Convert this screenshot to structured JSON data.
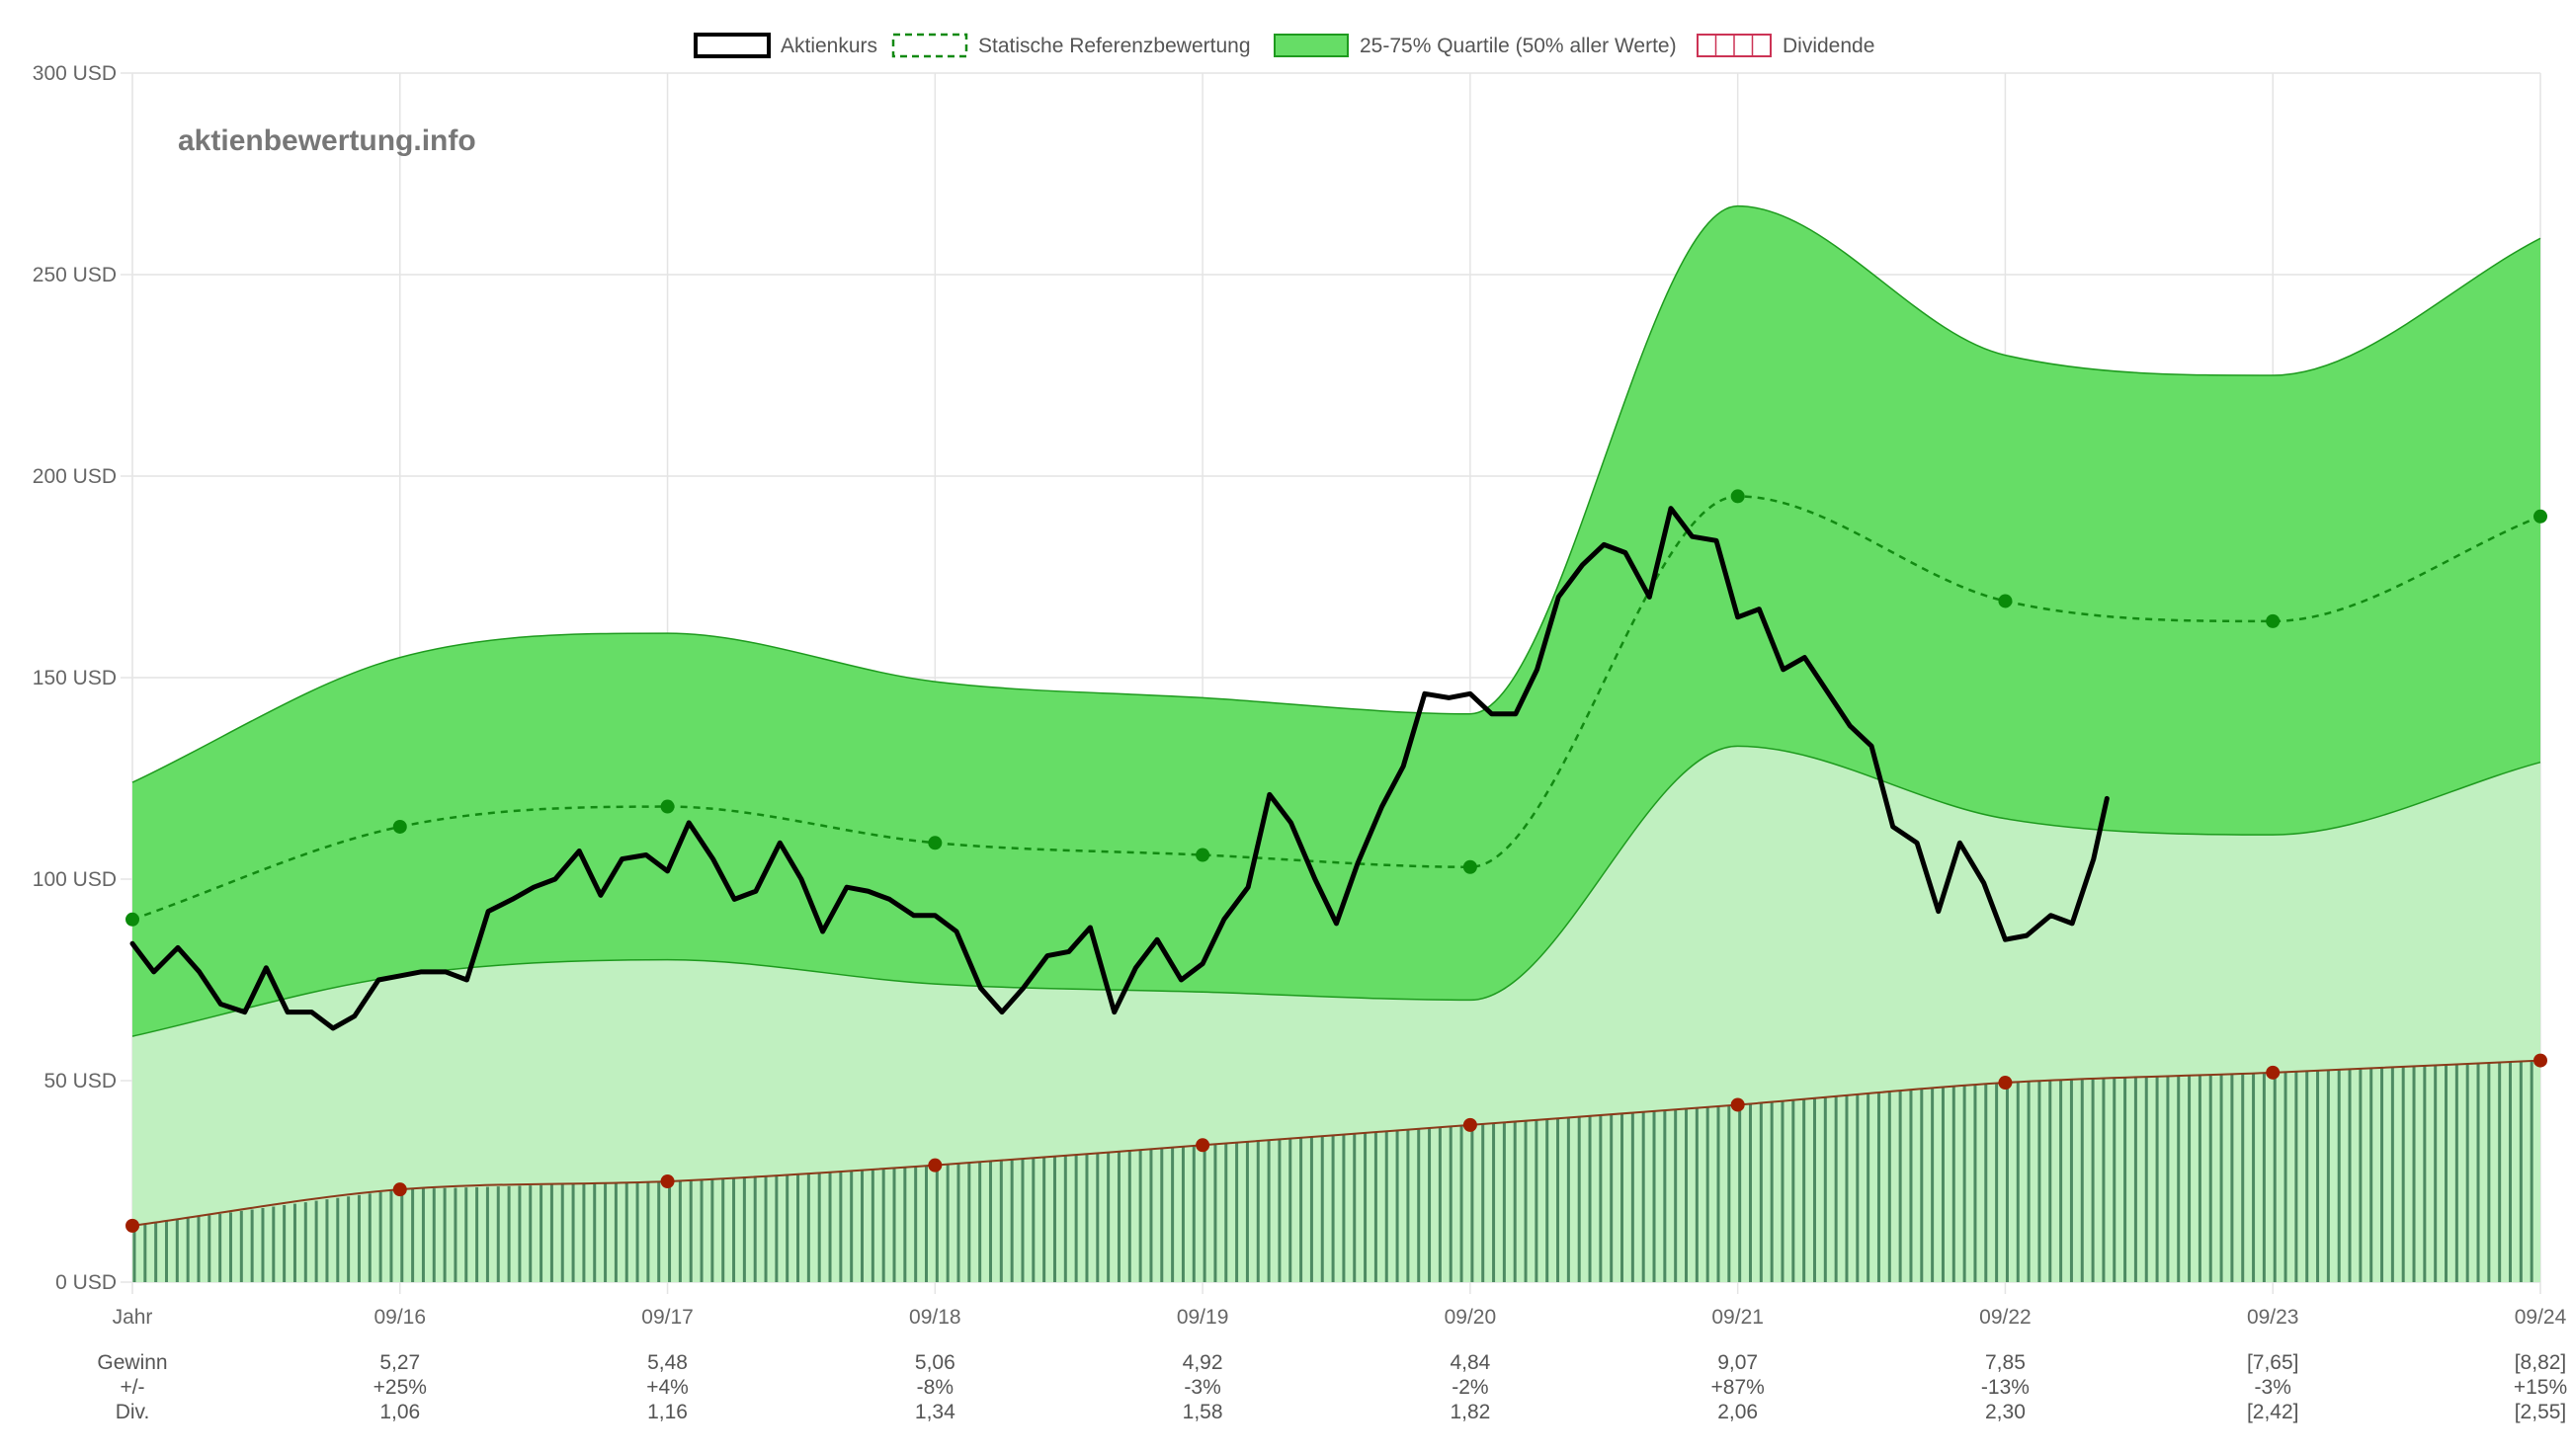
{
  "watermark": "aktienbewertung.info",
  "legend": {
    "items": [
      {
        "label": "Aktienkurs",
        "key": "price"
      },
      {
        "label": "Statische Referenzbewertung",
        "key": "reference"
      },
      {
        "label": "25-75% Quartile (50% aller Werte)",
        "key": "quartile"
      },
      {
        "label": "Dividende",
        "key": "dividend"
      }
    ]
  },
  "colors": {
    "price": "#000000",
    "reference": "#128a12",
    "reference_point": "#0a8a0a",
    "quartile_fill": "#66dd66",
    "quartile_stroke": "#1e9a1e",
    "lower_fill": "#c0f0c0",
    "dividend_bar": "#4d8a62",
    "dividend_line": "#8b3a1a",
    "dividend_point": "#a01e00",
    "dividend_legend_border": "#cc3355",
    "grid": "#e4e4e4"
  },
  "chart_data": {
    "type": "line",
    "ylim": [
      0,
      300
    ],
    "y_ticks": [
      {
        "value": 0,
        "label": "0 USD"
      },
      {
        "value": 50,
        "label": "50 USD"
      },
      {
        "value": 100,
        "label": "100 USD"
      },
      {
        "value": 150,
        "label": "150 USD"
      },
      {
        "value": 200,
        "label": "200 USD"
      },
      {
        "value": 250,
        "label": "250 USD"
      },
      {
        "value": 300,
        "label": "300 USD"
      }
    ],
    "categories": [
      "Jahr",
      "09/16",
      "09/17",
      "09/18",
      "09/19",
      "09/20",
      "09/21",
      "09/22",
      "09/23",
      "09/24"
    ],
    "reference": [
      90,
      113,
      118,
      109,
      106,
      103,
      195,
      169,
      164,
      190
    ],
    "quartile_upper": [
      124,
      155,
      161,
      149,
      145,
      141,
      267,
      230,
      225,
      259
    ],
    "quartile_lower": [
      61,
      76,
      80,
      74,
      72,
      70,
      133,
      115,
      111,
      129
    ],
    "dividend": [
      14,
      23,
      25,
      29,
      34,
      39,
      44,
      49.5,
      52,
      55
    ],
    "price": [
      [
        0.0,
        84
      ],
      [
        0.08,
        77
      ],
      [
        0.17,
        83
      ],
      [
        0.25,
        77
      ],
      [
        0.33,
        69
      ],
      [
        0.42,
        67
      ],
      [
        0.5,
        78
      ],
      [
        0.58,
        67
      ],
      [
        0.67,
        67
      ],
      [
        0.75,
        63
      ],
      [
        0.83,
        66
      ],
      [
        0.92,
        75
      ],
      [
        1.0,
        76
      ],
      [
        1.08,
        77
      ],
      [
        1.17,
        77
      ],
      [
        1.25,
        75
      ],
      [
        1.33,
        92
      ],
      [
        1.42,
        95
      ],
      [
        1.5,
        98
      ],
      [
        1.58,
        100
      ],
      [
        1.67,
        107
      ],
      [
        1.75,
        96
      ],
      [
        1.83,
        105
      ],
      [
        1.92,
        106
      ],
      [
        2.0,
        102
      ],
      [
        2.08,
        114
      ],
      [
        2.17,
        105
      ],
      [
        2.25,
        95
      ],
      [
        2.33,
        97
      ],
      [
        2.42,
        109
      ],
      [
        2.5,
        100
      ],
      [
        2.58,
        87
      ],
      [
        2.67,
        98
      ],
      [
        2.75,
        97
      ],
      [
        2.83,
        95
      ],
      [
        2.92,
        91
      ],
      [
        3.0,
        91
      ],
      [
        3.08,
        87
      ],
      [
        3.17,
        73
      ],
      [
        3.25,
        67
      ],
      [
        3.33,
        73
      ],
      [
        3.42,
        81
      ],
      [
        3.5,
        82
      ],
      [
        3.58,
        88
      ],
      [
        3.67,
        67
      ],
      [
        3.75,
        78
      ],
      [
        3.83,
        85
      ],
      [
        3.92,
        75
      ],
      [
        4.0,
        79
      ],
      [
        4.08,
        90
      ],
      [
        4.17,
        98
      ],
      [
        4.25,
        121
      ],
      [
        4.33,
        114
      ],
      [
        4.42,
        100
      ],
      [
        4.5,
        89
      ],
      [
        4.58,
        104
      ],
      [
        4.67,
        118
      ],
      [
        4.75,
        128
      ],
      [
        4.83,
        146
      ],
      [
        4.92,
        145
      ],
      [
        5.0,
        146
      ],
      [
        5.08,
        141
      ],
      [
        5.17,
        141
      ],
      [
        5.25,
        152
      ],
      [
        5.33,
        170
      ],
      [
        5.42,
        178
      ],
      [
        5.5,
        183
      ],
      [
        5.58,
        181
      ],
      [
        5.67,
        170
      ],
      [
        5.75,
        192
      ],
      [
        5.83,
        185
      ],
      [
        5.92,
        184
      ],
      [
        6.0,
        165
      ],
      [
        6.08,
        167
      ],
      [
        6.17,
        152
      ],
      [
        6.25,
        155
      ],
      [
        6.33,
        147
      ],
      [
        6.42,
        138
      ],
      [
        6.5,
        133
      ],
      [
        6.58,
        113
      ],
      [
        6.67,
        109
      ],
      [
        6.75,
        92
      ],
      [
        6.83,
        109
      ],
      [
        6.92,
        99
      ],
      [
        7.0,
        85
      ],
      [
        7.08,
        86
      ],
      [
        7.17,
        91
      ],
      [
        7.25,
        89
      ],
      [
        7.33,
        105
      ],
      [
        7.38,
        120
      ]
    ]
  },
  "table": {
    "rows": [
      {
        "label": "Gewinn",
        "values": [
          "5,27",
          "5,48",
          "5,06",
          "4,92",
          "4,84",
          "9,07",
          "7,85",
          "[7,65]",
          "[8,82]"
        ]
      },
      {
        "label": "+/-",
        "values": [
          "+25%",
          "+4%",
          "-8%",
          "-3%",
          "-2%",
          "+87%",
          "-13%",
          "-3%",
          "+15%"
        ]
      },
      {
        "label": "Div.",
        "values": [
          "1,06",
          "1,16",
          "1,34",
          "1,58",
          "1,82",
          "2,06",
          "2,30",
          "[2,42]",
          "[2,55]"
        ]
      }
    ]
  }
}
